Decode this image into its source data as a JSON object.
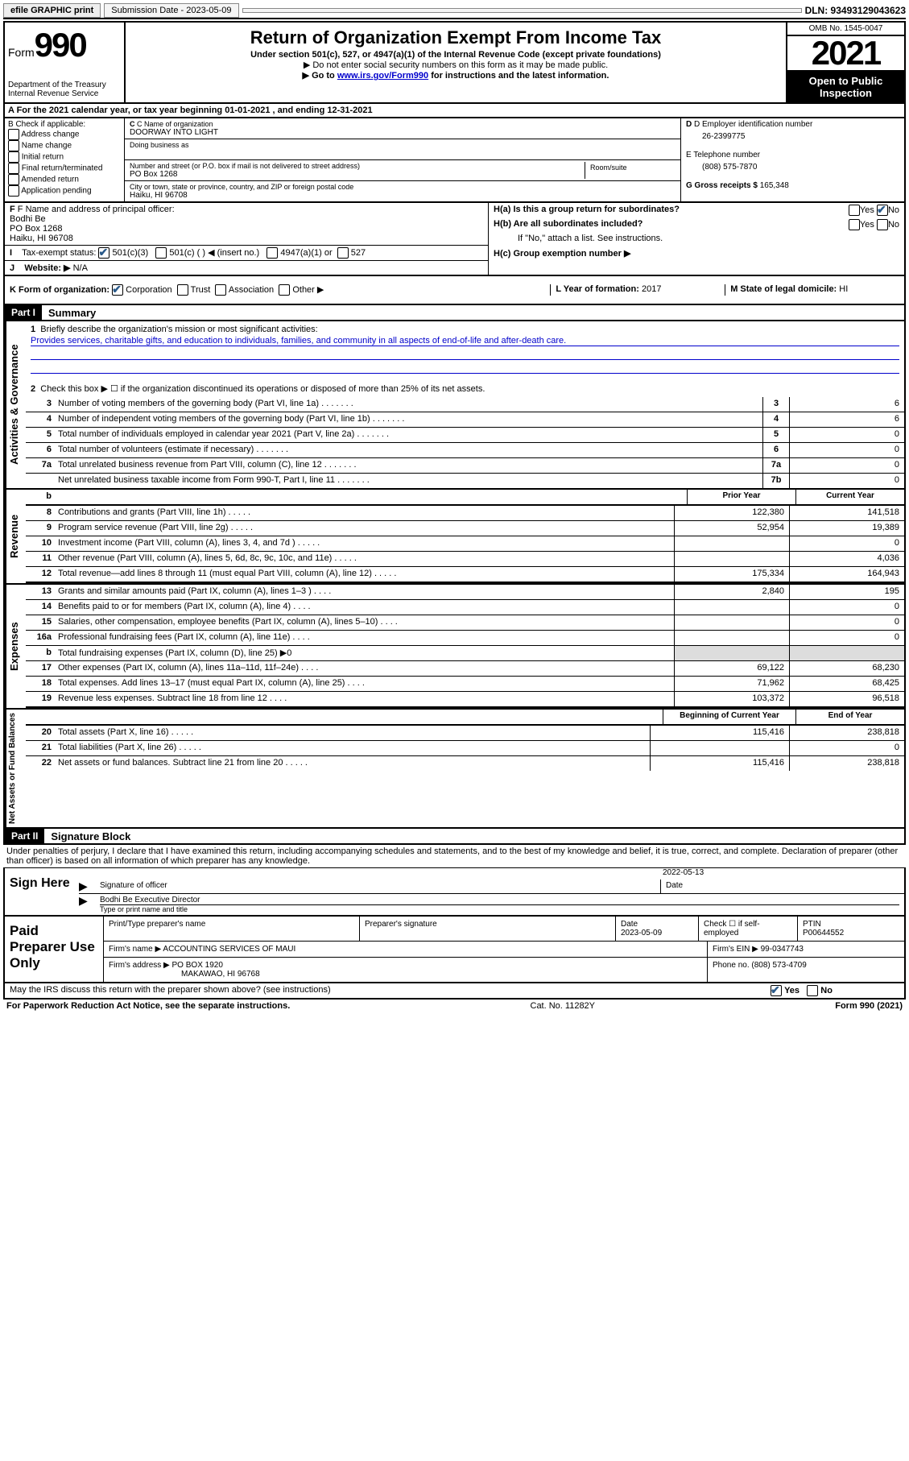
{
  "topbar": {
    "efile": "efile GRAPHIC print",
    "submission_label": "Submission Date - 2023-05-09",
    "dln": "DLN: 93493129043623"
  },
  "header": {
    "form_label": "Form",
    "form_number": "990",
    "dept": "Department of the Treasury",
    "irs": "Internal Revenue Service",
    "title": "Return of Organization Exempt From Income Tax",
    "sub": "Under section 501(c), 527, or 4947(a)(1) of the Internal Revenue Code (except private foundations)",
    "note1": "▶ Do not enter social security numbers on this form as it may be made public.",
    "note2_pre": "▶ Go to ",
    "note2_link": "www.irs.gov/Form990",
    "note2_post": " for instructions and the latest information.",
    "omb": "OMB No. 1545-0047",
    "year": "2021",
    "opi": "Open to Public Inspection"
  },
  "a": {
    "text": "A For the 2021 calendar year, or tax year beginning 01-01-2021   , and ending 12-31-2021"
  },
  "b": {
    "label": "B Check if applicable:",
    "items": [
      "Address change",
      "Name change",
      "Initial return",
      "Final return/terminated",
      "Amended return",
      "Application pending"
    ]
  },
  "c": {
    "name_label": "C Name of organization",
    "name": "DOORWAY INTO LIGHT",
    "dba_label": "Doing business as",
    "street_label": "Number and street (or P.O. box if mail is not delivered to street address)",
    "street": "PO Box 1268",
    "suite_label": "Room/suite",
    "city_label": "City or town, state or province, country, and ZIP or foreign postal code",
    "city": "Haiku, HI  96708"
  },
  "d": {
    "ein_label": "D Employer identification number",
    "ein": "26-2399775",
    "phone_label": "E Telephone number",
    "phone": "(808) 575-7870",
    "gross_label": "G Gross receipts $",
    "gross": "165,348"
  },
  "f": {
    "label": "F Name and address of principal officer:",
    "name": "Bodhi Be",
    "addr1": "PO Box 1268",
    "addr2": "Haiku, HI  96708"
  },
  "i": {
    "label": "Tax-exempt status:",
    "opt1": "501(c)(3)",
    "opt2": "501(c) (  ) ◀ (insert no.)",
    "opt3": "4947(a)(1) or",
    "opt4": "527"
  },
  "j": {
    "label": "Website: ▶",
    "value": "N/A"
  },
  "h": {
    "ha": "H(a)  Is this a group return for subordinates?",
    "hb": "H(b)  Are all subordinates included?",
    "hb_note": "If \"No,\" attach a list. See instructions.",
    "hc": "H(c)  Group exemption number ▶",
    "yes": "Yes",
    "no": "No"
  },
  "k": {
    "label": "K Form of organization:",
    "opts": [
      "Corporation",
      "Trust",
      "Association",
      "Other ▶"
    ]
  },
  "l": {
    "label": "L Year of formation:",
    "value": "2017"
  },
  "m": {
    "label": "M State of legal domicile:",
    "value": "HI"
  },
  "part1": {
    "header": "Part I",
    "title": "Summary",
    "q1": "Briefly describe the organization's mission or most significant activities:",
    "mission": "Provides services, charitable gifts, and education to individuals, families, and community in all aspects of end-of-life and after-death care.",
    "q2": "Check this box ▶ ☐  if the organization discontinued its operations or disposed of more than 25% of its net assets.",
    "rows_gov": [
      {
        "n": "3",
        "d": "Number of voting members of the governing body (Part VI, line 1a)",
        "rn": "3",
        "v": "6"
      },
      {
        "n": "4",
        "d": "Number of independent voting members of the governing body (Part VI, line 1b)",
        "rn": "4",
        "v": "6"
      },
      {
        "n": "5",
        "d": "Total number of individuals employed in calendar year 2021 (Part V, line 2a)",
        "rn": "5",
        "v": "0"
      },
      {
        "n": "6",
        "d": "Total number of volunteers (estimate if necessary)",
        "rn": "6",
        "v": "0"
      },
      {
        "n": "7a",
        "d": "Total unrelated business revenue from Part VIII, column (C), line 12",
        "rn": "7a",
        "v": "0"
      },
      {
        "n": "",
        "d": "Net unrelated business taxable income from Form 990-T, Part I, line 11",
        "rn": "7b",
        "v": "0"
      }
    ],
    "col_prior": "Prior Year",
    "col_current": "Current Year",
    "rows_rev": [
      {
        "n": "8",
        "d": "Contributions and grants (Part VIII, line 1h)",
        "p": "122,380",
        "c": "141,518"
      },
      {
        "n": "9",
        "d": "Program service revenue (Part VIII, line 2g)",
        "p": "52,954",
        "c": "19,389"
      },
      {
        "n": "10",
        "d": "Investment income (Part VIII, column (A), lines 3, 4, and 7d )",
        "p": "",
        "c": "0"
      },
      {
        "n": "11",
        "d": "Other revenue (Part VIII, column (A), lines 5, 6d, 8c, 9c, 10c, and 11e)",
        "p": "",
        "c": "4,036"
      },
      {
        "n": "12",
        "d": "Total revenue—add lines 8 through 11 (must equal Part VIII, column (A), line 12)",
        "p": "175,334",
        "c": "164,943"
      }
    ],
    "rows_exp": [
      {
        "n": "13",
        "d": "Grants and similar amounts paid (Part IX, column (A), lines 1–3 )",
        "p": "2,840",
        "c": "195"
      },
      {
        "n": "14",
        "d": "Benefits paid to or for members (Part IX, column (A), line 4)",
        "p": "",
        "c": "0"
      },
      {
        "n": "15",
        "d": "Salaries, other compensation, employee benefits (Part IX, column (A), lines 5–10)",
        "p": "",
        "c": "0"
      },
      {
        "n": "16a",
        "d": "Professional fundraising fees (Part IX, column (A), line 11e)",
        "p": "",
        "c": "0"
      },
      {
        "n": "b",
        "d": "Total fundraising expenses (Part IX, column (D), line 25) ▶0",
        "shade": true
      },
      {
        "n": "17",
        "d": "Other expenses (Part IX, column (A), lines 11a–11d, 11f–24e)",
        "p": "69,122",
        "c": "68,230"
      },
      {
        "n": "18",
        "d": "Total expenses. Add lines 13–17 (must equal Part IX, column (A), line 25)",
        "p": "71,962",
        "c": "68,425"
      },
      {
        "n": "19",
        "d": "Revenue less expenses. Subtract line 18 from line 12",
        "p": "103,372",
        "c": "96,518"
      }
    ],
    "col_begin": "Beginning of Current Year",
    "col_end": "End of Year",
    "rows_net": [
      {
        "n": "20",
        "d": "Total assets (Part X, line 16)",
        "p": "115,416",
        "c": "238,818"
      },
      {
        "n": "21",
        "d": "Total liabilities (Part X, line 26)",
        "p": "",
        "c": "0"
      },
      {
        "n": "22",
        "d": "Net assets or fund balances. Subtract line 21 from line 20",
        "p": "115,416",
        "c": "238,818"
      }
    ]
  },
  "part2": {
    "header": "Part II",
    "title": "Signature Block",
    "note": "Under penalties of perjury, I declare that I have examined this return, including accompanying schedules and statements, and to the best of my knowledge and belief, it is true, correct, and complete. Declaration of preparer (other than officer) is based on all information of which preparer has any knowledge."
  },
  "sign": {
    "label": "Sign Here",
    "sig_label": "Signature of officer",
    "date_label": "Date",
    "date": "2022-05-13",
    "name": "Bodhi Be  Executive Director",
    "name_label": "Type or print name and title"
  },
  "paid": {
    "label": "Paid Preparer Use Only",
    "h1": "Print/Type preparer's name",
    "h2": "Preparer's signature",
    "h3": "Date",
    "date": "2023-05-09",
    "h4": "Check ☐ if self-employed",
    "h5": "PTIN",
    "ptin": "P00644552",
    "firm_name_label": "Firm's name    ▶",
    "firm_name": "ACCOUNTING SERVICES OF MAUI",
    "firm_ein_label": "Firm's EIN ▶",
    "firm_ein": "99-0347743",
    "firm_addr_label": "Firm's address ▶",
    "firm_addr1": "PO BOX 1920",
    "firm_addr2": "MAKAWAO, HI  96768",
    "phone_label": "Phone no.",
    "phone": "(808) 573-4709"
  },
  "discuss": {
    "text": "May the IRS discuss this return with the preparer shown above? (see instructions)",
    "yes": "Yes",
    "no": "No"
  },
  "footer": {
    "left": "For Paperwork Reduction Act Notice, see the separate instructions.",
    "mid": "Cat. No. 11282Y",
    "right": "Form 990 (2021)"
  }
}
